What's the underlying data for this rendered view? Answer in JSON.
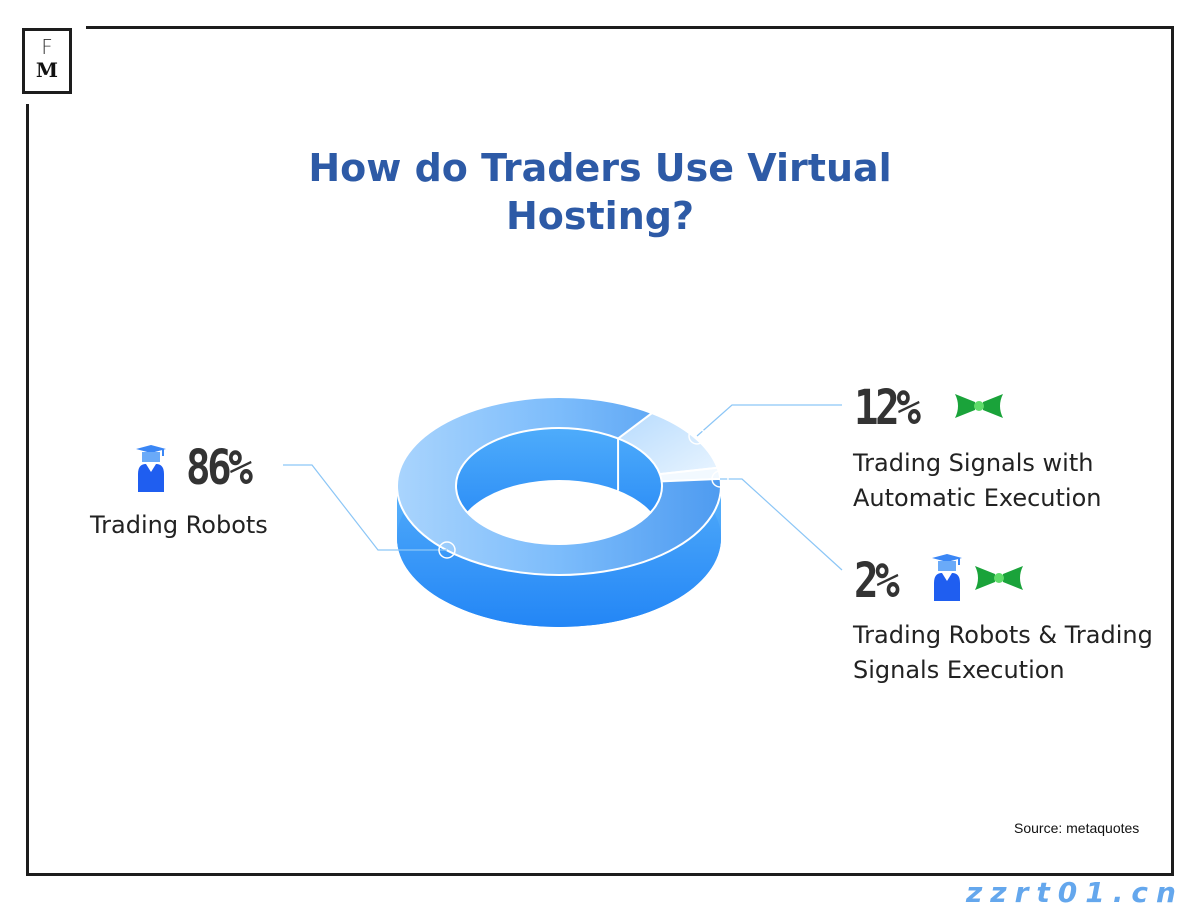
{
  "logo": {
    "top": "F",
    "bottom": "M"
  },
  "title": "How do Traders Use Virtual Hosting?",
  "source": "Source: metaquotes",
  "watermark": "zzrt01.cn",
  "colors": {
    "title": "#2d5aa6",
    "ring_light": "#9fcdfb",
    "ring_dark": "#2d8cf5",
    "robot_icon": "#1f5ef0",
    "signal_icon": "#1aa33a"
  },
  "chart_data": {
    "type": "pie",
    "style": "3d-donut",
    "title": "How do Traders Use Virtual Hosting?",
    "series": [
      {
        "label": "Trading Robots",
        "value": 86,
        "display": "86%",
        "icons": [
          "robot-graduate-icon"
        ]
      },
      {
        "label": "Trading Signals with Automatic Execution",
        "label_lines": [
          "Trading Signals with",
          "Automatic Execution"
        ],
        "value": 12,
        "display": "12%",
        "icons": [
          "signal-bowtie-icon"
        ]
      },
      {
        "label": "Trading Robots & Trading Signals Execution",
        "label_lines": [
          "Trading Robots & Trading",
          "Signals Execution"
        ],
        "value": 2,
        "display": "2%",
        "icons": [
          "robot-graduate-icon",
          "signal-bowtie-icon"
        ]
      }
    ]
  }
}
